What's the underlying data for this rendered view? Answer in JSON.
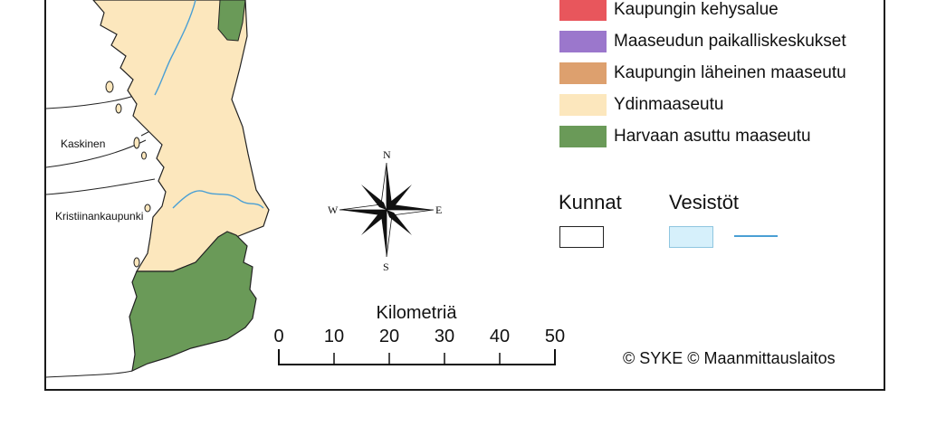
{
  "legend": {
    "items": [
      {
        "label": "Kaupungin kehysalue",
        "color": "#e8565c"
      },
      {
        "label": "Maaseudun paikalliskeskukset",
        "color": "#9b77cc"
      },
      {
        "label": "Kaupungin läheinen maaseutu",
        "color": "#dda06e"
      },
      {
        "label": "Ydinmaaseutu",
        "color": "#fce7bd"
      },
      {
        "label": "Harvaan asuttu maaseutu",
        "color": "#6a9a58"
      }
    ],
    "kunnat_label": "Kunnat",
    "vesistot_label": "Vesistöt",
    "water_fill": "#d6f0fb",
    "river_color": "#4a9fd4"
  },
  "map": {
    "towns": [
      "Kaskinen",
      "Kristiinankaupunki"
    ],
    "compass": {
      "n": "N",
      "s": "S",
      "e": "E",
      "w": "W"
    }
  },
  "scale": {
    "title": "Kilometriä",
    "ticks": [
      "0",
      "10",
      "20",
      "30",
      "40",
      "50"
    ]
  },
  "credit": "© SYKE © Maanmittauslaitos"
}
